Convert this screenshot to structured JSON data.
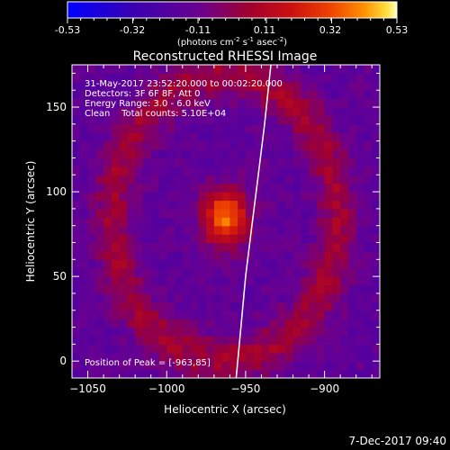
{
  "colorbar": {
    "ticks": [
      "-0.53",
      "-0.32",
      "-0.11",
      "0.11",
      "0.32",
      "0.53"
    ],
    "unit_main": "(photons cm",
    "unit_exp1": "-2",
    "unit_mid": " s",
    "unit_exp2": "-1",
    "unit_after": " asec",
    "unit_exp3": "-2",
    "unit_close": ")"
  },
  "annotations": {
    "time_range": "31-May-2017 23:52:20.000 to 00:02:20.000",
    "detectors": "Detectors: 3F 6F 8F, Att 0",
    "energy": "Energy Range: 3.0 - 6.0 keV",
    "clean": "Clean    Total counts: 5.10E+04",
    "peak": "Position of Peak = [-963,85]"
  },
  "footer_date": "7-Dec-2017 09:40",
  "colors": {
    "background": "#000000",
    "text": "#ffffff",
    "limb": "#ffffff",
    "colormap": [
      "#0000ff",
      "#3a00b0",
      "#5a2a9a",
      "#6a0090",
      "#a00030",
      "#cc1010",
      "#ee4400",
      "#ff8000",
      "#ffc000",
      "#ffff80",
      "#ffffff"
    ]
  },
  "chart_data": {
    "type": "heatmap",
    "title": "Reconstructed RHESSI Image",
    "xlabel": "Heliocentric X (arcsec)",
    "ylabel": "Heliocentric Y (arcsec)",
    "xlim": [
      -1060,
      -865
    ],
    "ylim": [
      -10,
      175
    ],
    "xticks": [
      -1050,
      -1000,
      -950,
      -900
    ],
    "yticks": [
      0,
      50,
      100,
      150
    ],
    "colorbar_range": [
      -0.53,
      0.53
    ],
    "colorbar_ticks": [
      -0.53,
      -0.32,
      -0.11,
      0.11,
      0.32,
      0.53
    ],
    "peak_position": [
      -963,
      85
    ],
    "peak_value": 0.53,
    "peak_sigma_arcsec": [
      10,
      12
    ],
    "ring_radius_arcsec": [
      68,
      80
    ],
    "ring_center": [
      -963,
      85
    ],
    "ring_value": 0.2,
    "inner_background": -0.15,
    "pixel_size_arcsec": 5,
    "limb_curve": [
      [
        -956,
        -10
      ],
      [
        -953,
        20
      ],
      [
        -950,
        50
      ],
      [
        -946,
        80
      ],
      [
        -942,
        110
      ],
      [
        -938,
        140
      ],
      [
        -934,
        175
      ]
    ]
  }
}
